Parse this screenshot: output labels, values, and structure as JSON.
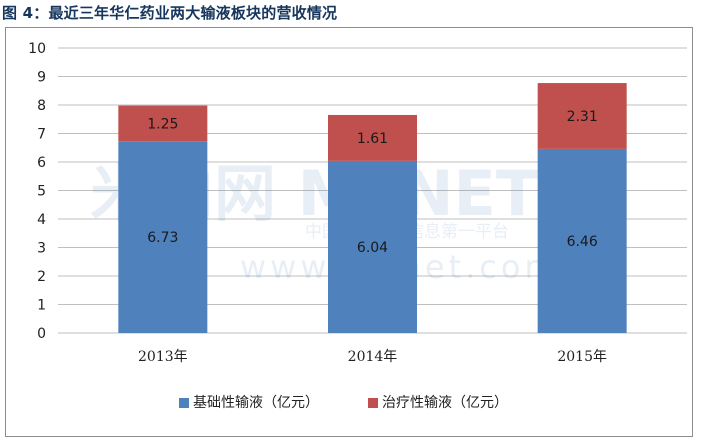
{
  "figure": {
    "title": "图 4：最近三年华仁药业两大输液板块的营收情况"
  },
  "watermark": {
    "logo": "米内网 MENET",
    "subtitle": "中国医药健康信息第一平台",
    "url": "www.menet.com.cn"
  },
  "colors": {
    "basic": "#4f81bd",
    "therapeutic": "#c0504d",
    "grid": "#bfbfbf",
    "title": "#17365d"
  },
  "chart_data": {
    "type": "bar",
    "stacked": true,
    "categories": [
      "2013年",
      "2014年",
      "2015年"
    ],
    "series": [
      {
        "name": "基础性输液（亿元）",
        "values": [
          6.73,
          6.04,
          6.46
        ],
        "labels": [
          "6.73",
          "6.04",
          "6.46"
        ],
        "color": "#4f81bd"
      },
      {
        "name": "治疗性输液（亿元）",
        "values": [
          1.25,
          1.61,
          2.31
        ],
        "labels": [
          "1.25",
          "1.61",
          "2.31"
        ],
        "color": "#c0504d"
      }
    ],
    "ylim": [
      0,
      10
    ],
    "yticks": [
      "0",
      "1",
      "2",
      "3",
      "4",
      "5",
      "6",
      "7",
      "8",
      "9",
      "10"
    ],
    "grid": true,
    "legend": "bottom"
  }
}
